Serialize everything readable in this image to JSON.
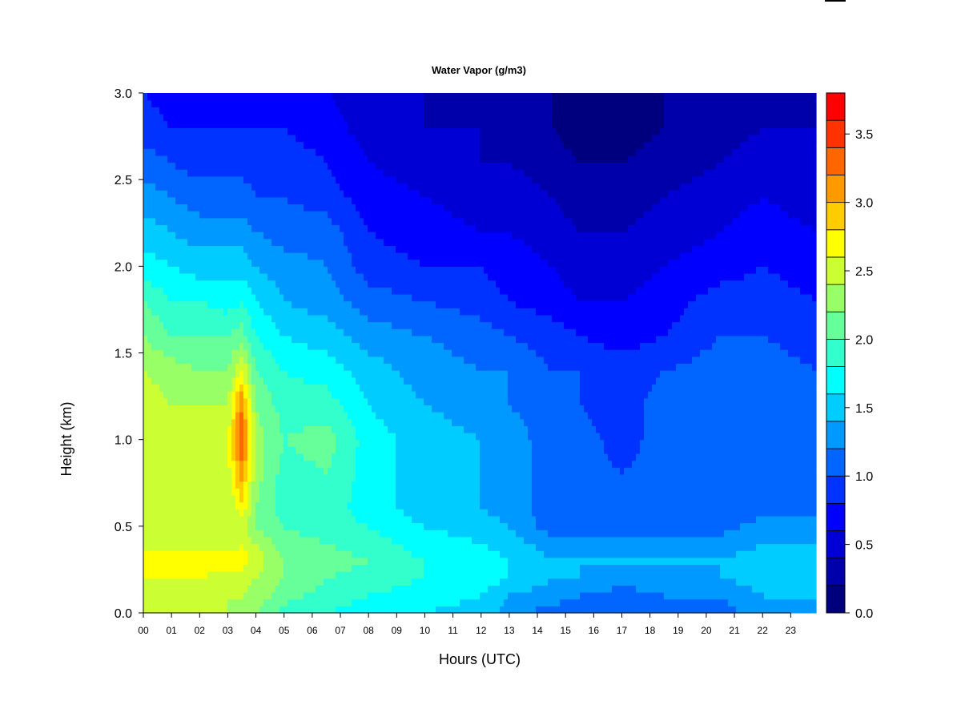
{
  "chart_data": {
    "type": "heatmap",
    "title": "Water Vapor (g/m3)",
    "xlabel": "Hours (UTC)",
    "ylabel": "Height (km)",
    "xlim": [
      0,
      23.9
    ],
    "ylim": [
      0.0,
      3.0
    ],
    "x_ticks": [
      "00",
      "01",
      "02",
      "03",
      "04",
      "05",
      "06",
      "07",
      "08",
      "09",
      "10",
      "11",
      "12",
      "13",
      "14",
      "15",
      "16",
      "17",
      "18",
      "19",
      "20",
      "21",
      "22",
      "23"
    ],
    "y_ticks": [
      "0.0",
      "0.5",
      "1.0",
      "1.5",
      "2.0",
      "2.5",
      "3.0"
    ],
    "colorbar": {
      "ticks": [
        "0.0",
        "0.5",
        "1.0",
        "1.5",
        "2.0",
        "2.5",
        "3.0",
        "3.5"
      ],
      "levels": [
        0.0,
        0.2,
        0.4,
        0.6,
        0.8,
        1.0,
        1.2,
        1.4,
        1.6,
        1.8,
        2.0,
        2.2,
        2.4,
        2.6,
        2.8,
        3.0,
        3.2,
        3.4,
        3.6,
        3.8
      ],
      "colors": [
        "#00007F",
        "#0000AA",
        "#0000D4",
        "#0000FF",
        "#0033FF",
        "#0066FF",
        "#0099FF",
        "#00CCFF",
        "#00FFFF",
        "#33FFCC",
        "#66FF99",
        "#99FF66",
        "#CCFF33",
        "#FFFF00",
        "#FFCC00",
        "#FF9900",
        "#FF6600",
        "#FF3300",
        "#FF0000",
        "#CC0000",
        "#800000"
      ]
    },
    "profile_heights_km": [
      0.0,
      0.1,
      0.2,
      0.3,
      0.4,
      0.5,
      0.6,
      0.8,
      1.0,
      1.2,
      1.4,
      1.6,
      1.8,
      2.0,
      2.2,
      2.4,
      2.6,
      2.8,
      3.0
    ],
    "profiles": [
      {
        "hour": 0.0,
        "values": [
          2.4,
          2.5,
          2.6,
          2.7,
          2.5,
          2.5,
          2.5,
          2.6,
          2.6,
          2.5,
          2.4,
          2.2,
          2.0,
          1.7,
          1.5,
          1.3,
          1.1,
          0.9,
          0.8
        ]
      },
      {
        "hour": 1.0,
        "values": [
          2.4,
          2.5,
          2.6,
          2.7,
          2.5,
          2.4,
          2.5,
          2.5,
          2.6,
          2.4,
          2.3,
          2.0,
          1.8,
          1.6,
          1.4,
          1.2,
          1.0,
          0.8,
          0.7
        ]
      },
      {
        "hour": 2.0,
        "values": [
          2.4,
          2.4,
          2.6,
          2.7,
          2.5,
          2.4,
          2.4,
          2.5,
          2.5,
          2.4,
          2.2,
          2.0,
          1.8,
          1.5,
          1.3,
          1.1,
          0.9,
          0.8,
          0.7
        ]
      },
      {
        "hour": 3.0,
        "values": [
          2.4,
          2.4,
          2.5,
          2.7,
          2.5,
          2.4,
          2.4,
          2.5,
          2.6,
          2.4,
          2.2,
          2.0,
          1.7,
          1.5,
          1.3,
          1.1,
          0.9,
          0.8,
          0.7
        ]
      },
      {
        "hour": 3.5,
        "values": [
          2.3,
          2.4,
          2.5,
          2.7,
          2.6,
          2.5,
          2.7,
          3.1,
          3.4,
          3.2,
          2.6,
          2.1,
          1.8,
          1.5,
          1.3,
          1.1,
          0.9,
          0.8,
          0.7
        ]
      },
      {
        "hour": 4.0,
        "values": [
          2.2,
          2.3,
          2.4,
          2.5,
          2.4,
          2.2,
          2.2,
          2.3,
          2.3,
          2.2,
          2.0,
          1.8,
          1.6,
          1.4,
          1.2,
          1.0,
          0.9,
          0.8,
          0.7
        ]
      },
      {
        "hour": 5.0,
        "values": [
          1.9,
          2.1,
          2.2,
          2.2,
          2.1,
          2.0,
          1.9,
          1.9,
          2.0,
          1.9,
          1.8,
          1.6,
          1.4,
          1.3,
          1.1,
          1.0,
          0.9,
          0.8,
          0.7
        ]
      },
      {
        "hour": 6.5,
        "values": [
          1.8,
          1.9,
          2.0,
          2.1,
          2.0,
          1.9,
          1.9,
          2.0,
          2.1,
          1.9,
          1.7,
          1.5,
          1.3,
          1.2,
          1.1,
          0.9,
          0.8,
          0.7,
          0.6
        ]
      },
      {
        "hour": 8.0,
        "values": [
          1.7,
          1.8,
          1.9,
          2.0,
          1.9,
          1.8,
          1.7,
          1.7,
          1.7,
          1.6,
          1.5,
          1.3,
          1.1,
          0.9,
          0.8,
          0.7,
          0.6,
          0.5,
          0.5
        ]
      },
      {
        "hour": 10.0,
        "values": [
          1.6,
          1.7,
          1.8,
          1.8,
          1.7,
          1.6,
          1.5,
          1.5,
          1.5,
          1.4,
          1.3,
          1.2,
          1.0,
          0.8,
          0.7,
          0.6,
          0.5,
          0.4,
          0.4
        ]
      },
      {
        "hour": 12.0,
        "values": [
          1.5,
          1.6,
          1.7,
          1.7,
          1.6,
          1.5,
          1.4,
          1.4,
          1.4,
          1.3,
          1.2,
          1.1,
          0.9,
          0.8,
          0.6,
          0.5,
          0.4,
          0.4,
          0.3
        ]
      },
      {
        "hour": 13.0,
        "values": [
          1.3,
          1.4,
          1.6,
          1.6,
          1.5,
          1.4,
          1.3,
          1.3,
          1.3,
          1.2,
          1.2,
          1.0,
          0.8,
          0.7,
          0.6,
          0.5,
          0.4,
          0.3,
          0.3
        ]
      },
      {
        "hour": 14.5,
        "values": [
          1.1,
          1.3,
          1.4,
          1.4,
          1.3,
          1.1,
          1.1,
          1.1,
          1.1,
          1.1,
          1.0,
          0.9,
          0.7,
          0.6,
          0.5,
          0.4,
          0.3,
          0.2,
          0.2
        ]
      },
      {
        "hour": 15.5,
        "values": [
          1.1,
          1.2,
          1.4,
          1.4,
          1.3,
          1.1,
          1.1,
          1.1,
          1.1,
          1.0,
          1.0,
          0.8,
          0.6,
          0.5,
          0.4,
          0.3,
          0.2,
          0.1,
          0.1
        ]
      },
      {
        "hour": 17.0,
        "values": [
          1.1,
          1.1,
          1.3,
          1.4,
          1.3,
          1.1,
          1.0,
          1.0,
          0.9,
          0.9,
          0.9,
          0.7,
          0.6,
          0.5,
          0.4,
          0.3,
          0.2,
          0.1,
          0.1
        ]
      },
      {
        "hour": 18.5,
        "values": [
          1.1,
          1.2,
          1.3,
          1.4,
          1.3,
          1.1,
          1.1,
          1.1,
          1.1,
          1.1,
          1.0,
          0.8,
          0.7,
          0.6,
          0.5,
          0.4,
          0.3,
          0.2,
          0.2
        ]
      },
      {
        "hour": 20.5,
        "values": [
          1.1,
          1.2,
          1.4,
          1.4,
          1.3,
          1.1,
          1.1,
          1.1,
          1.1,
          1.1,
          1.1,
          1.0,
          0.9,
          0.7,
          0.6,
          0.5,
          0.4,
          0.3,
          0.3
        ]
      },
      {
        "hour": 22.0,
        "values": [
          1.3,
          1.4,
          1.5,
          1.5,
          1.4,
          1.3,
          1.1,
          1.1,
          1.1,
          1.1,
          1.1,
          1.0,
          0.9,
          0.8,
          0.7,
          0.6,
          0.5,
          0.4,
          0.4
        ]
      },
      {
        "hour": 23.9,
        "values": [
          1.3,
          1.4,
          1.5,
          1.5,
          1.4,
          1.3,
          1.1,
          1.1,
          1.1,
          1.1,
          1.0,
          0.9,
          0.8,
          0.7,
          0.6,
          0.5,
          0.4,
          0.4,
          0.3
        ]
      }
    ]
  }
}
